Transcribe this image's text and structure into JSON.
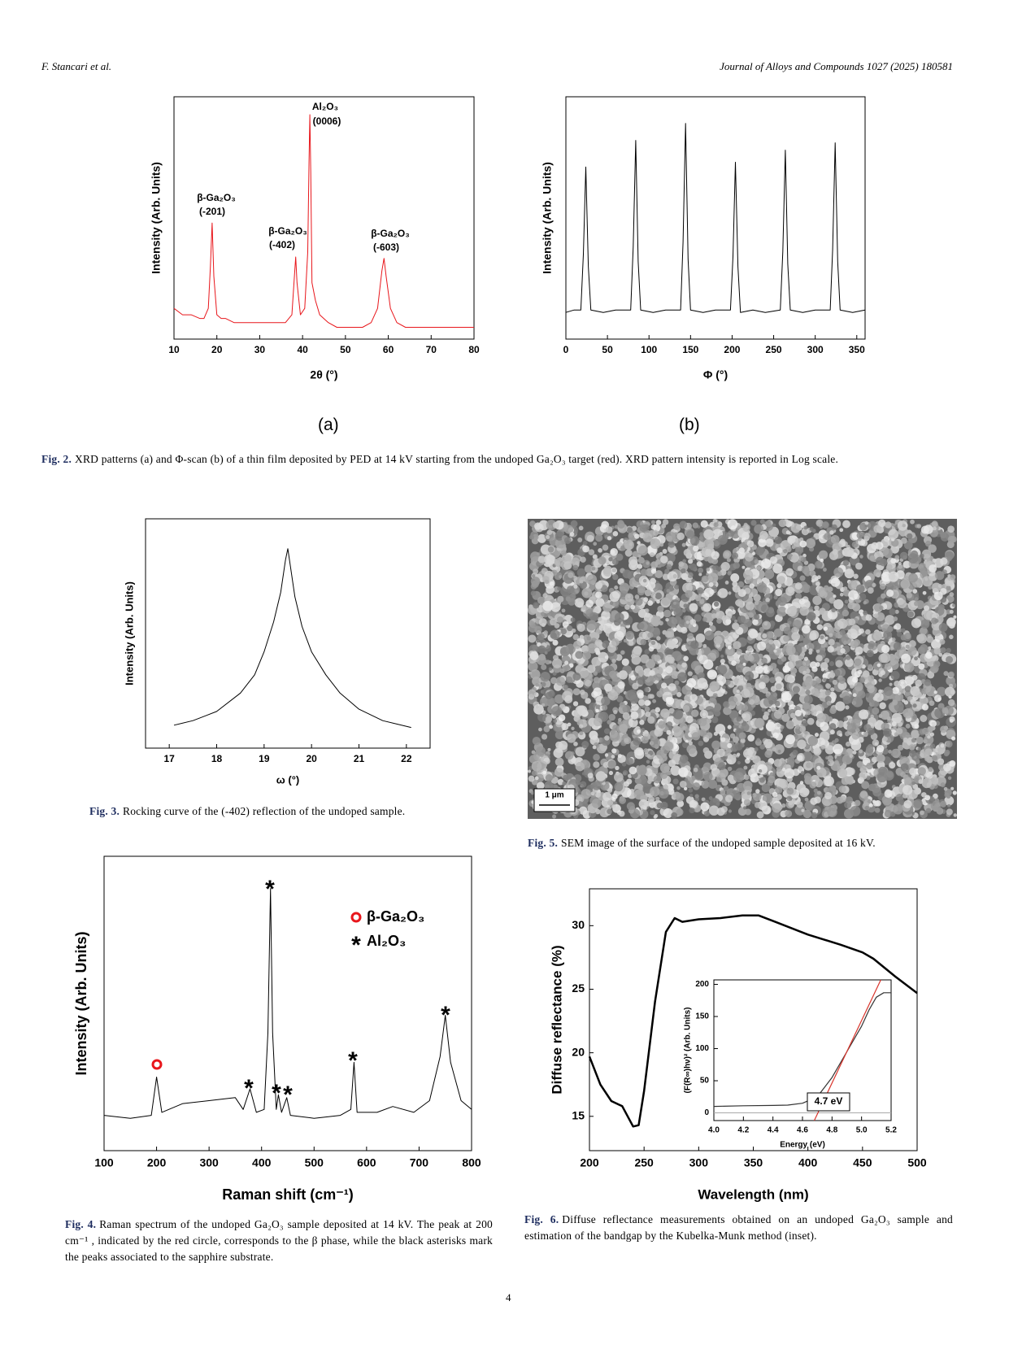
{
  "header": {
    "authors": "F. Stancari et al.",
    "journal": "Journal of Alloys and Compounds 1027 (2025) 180581"
  },
  "panel_labels": [
    "(a)",
    "(b)"
  ],
  "figures": [
    {
      "label": "Fig. 2.",
      "text": "XRD patterns (a) and Φ-scan (b) of a thin film deposited by PED at 14 kV starting from the undoped Ga₂O₃ target (red). XRD pattern intensity is reported in Log scale."
    },
    {
      "label": "Fig. 3.",
      "text": "Rocking curve of the (-402) reflection of the undoped sample."
    },
    {
      "label": "Fig. 5.",
      "text": "SEM image of the surface of the undoped sample deposited at 16 kV."
    },
    {
      "label": "Fig. 4.",
      "text": "Raman spectrum of the undoped Ga₂O₃ sample deposited at 14 kV. The peak at 200 cm⁻¹ , indicated by the red circle, corresponds to the β phase, while the black asterisks mark the peaks associated to the sapphire substrate."
    },
    {
      "label": "Fig. 6.",
      "text": "Diffuse reflectance measurements obtained on an undoped Ga₂O₃ sample and estimation of the bandgap by the Kubelka-Munk method (inset)."
    }
  ],
  "sem_scale_bar": "1 μm",
  "page_number": "4",
  "chart_data": [
    {
      "type": "line",
      "xlabel": "2θ (°)",
      "ylabel": "Intensity (Arb. Units)",
      "log_y": true,
      "xlim": [
        10,
        80
      ],
      "xticks": [
        10,
        20,
        30,
        40,
        50,
        60,
        70,
        80
      ],
      "ylim": [
        5,
        5000
      ],
      "x": [
        10,
        12,
        14,
        16,
        17,
        18,
        18.5,
        18.9,
        19.3,
        20,
        21,
        22,
        24,
        26,
        28,
        30,
        32,
        34,
        36,
        37.5,
        38.1,
        38.4,
        38.7,
        39.5,
        40.5,
        41.2,
        41.5,
        41.7,
        41.9,
        42.2,
        43,
        44,
        46,
        48,
        50,
        52,
        54,
        56,
        57.5,
        58.5,
        59,
        59.5,
        60.5,
        62,
        64,
        66,
        68,
        70,
        72,
        74,
        76,
        78,
        80
      ],
      "series": [
        {
          "color": "#e8161b",
          "values": [
            12,
            10,
            10,
            9,
            9,
            12,
            40,
            137,
            30,
            10,
            9,
            9,
            8,
            8,
            8,
            8,
            8,
            8,
            8,
            10,
            30,
            52,
            25,
            10,
            12,
            60,
            800,
            3000,
            600,
            25,
            15,
            10,
            8,
            7,
            7,
            7,
            7,
            8,
            12,
            35,
            50,
            30,
            12,
            8,
            7,
            7,
            7,
            7,
            7,
            7,
            7,
            7,
            7
          ]
        }
      ],
      "annotations": [
        "Al₂O₃",
        "(0006)",
        "β-Ga₂O₃",
        "(-201)",
        "β-Ga₂O₃",
        "(-402)",
        "β-Ga₂O₃",
        "(-603)"
      ]
    },
    {
      "type": "line",
      "xlabel": "Φ (°)",
      "ylabel": "Intensity (Arb. Units)",
      "xlim": [
        0,
        360
      ],
      "xticks": [
        0,
        50,
        100,
        150,
        200,
        250,
        300,
        350
      ],
      "ylim": [
        0,
        100
      ],
      "x": [
        0,
        10,
        18,
        21,
        24,
        27,
        30,
        45,
        60,
        78,
        81,
        84,
        87,
        90,
        105,
        120,
        138,
        141,
        144,
        147,
        150,
        165,
        180,
        198,
        201,
        204,
        207,
        210,
        225,
        240,
        258,
        261,
        264,
        267,
        270,
        285,
        300,
        318,
        321,
        324,
        327,
        330,
        345,
        360
      ],
      "series": [
        {
          "color": "#000000",
          "values": [
            11,
            12,
            12,
            35,
            71,
            30,
            12,
            11,
            12,
            12,
            38,
            82,
            32,
            12,
            11,
            12,
            12,
            40,
            89,
            33,
            12,
            11,
            12,
            12,
            34,
            73,
            30,
            11,
            12,
            11,
            12,
            36,
            78,
            31,
            12,
            11,
            12,
            12,
            37,
            81,
            32,
            12,
            11,
            12
          ]
        }
      ]
    },
    {
      "type": "line",
      "xlabel": "ω (°)",
      "ylabel": "Intensity (Arb. Units)",
      "xlim": [
        16.5,
        22.5
      ],
      "xticks": [
        17,
        18,
        19,
        20,
        21,
        22
      ],
      "ylim": [
        0,
        100
      ],
      "x": [
        17.1,
        17.5,
        18,
        18.5,
        18.8,
        19,
        19.2,
        19.35,
        19.45,
        19.5,
        19.55,
        19.65,
        19.8,
        20,
        20.3,
        20.6,
        21,
        21.5,
        22.1
      ],
      "series": [
        {
          "color": "#000000",
          "values": [
            10,
            12,
            16,
            24,
            32,
            42,
            55,
            68,
            82,
            87,
            80,
            66,
            53,
            42,
            32,
            24,
            17,
            12,
            9
          ]
        }
      ]
    },
    {
      "type": "line",
      "xlabel": "Raman shift (cm⁻¹)",
      "ylabel": "Intensity (Arb. Units)",
      "xlim": [
        100,
        800
      ],
      "xticks": [
        100,
        200,
        300,
        400,
        500,
        600,
        700,
        800
      ],
      "ylim": [
        0,
        100
      ],
      "x": [
        100,
        150,
        190,
        200,
        210,
        250,
        300,
        350,
        365,
        378,
        390,
        405,
        412,
        417,
        421,
        428,
        432,
        438,
        448,
        455,
        500,
        550,
        570,
        576,
        582,
        620,
        650,
        690,
        720,
        740,
        750,
        760,
        780,
        800
      ],
      "series": [
        {
          "color": "#000000",
          "values": [
            12,
            11,
            12,
            25,
            13,
            16,
            17,
            18,
            14,
            21,
            13,
            14,
            40,
            89,
            40,
            14,
            19,
            13,
            18,
            12,
            11,
            12,
            14,
            30,
            13,
            13,
            15,
            13,
            17,
            32,
            46,
            30,
            17,
            14
          ]
        }
      ],
      "legend": [
        "β-Ga₂O₃",
        "Al₂O₃"
      ],
      "annotations": [
        "*",
        "*",
        "*",
        "*",
        "*",
        "*"
      ]
    },
    {
      "type": "line",
      "xlabel": "Wavelength (nm)",
      "ylabel": "Diffuse reflectance (%)",
      "xlim": [
        200,
        500
      ],
      "xticks": [
        200,
        250,
        300,
        350,
        400,
        450,
        500
      ],
      "ylim": [
        12.3,
        32.9
      ],
      "yticks": [
        15,
        20,
        25,
        30
      ],
      "x": [
        200,
        210,
        220,
        230,
        240,
        245,
        250,
        260,
        270,
        278,
        285,
        300,
        320,
        340,
        355,
        370,
        400,
        430,
        450,
        460,
        480,
        500
      ],
      "series": [
        {
          "color": "#000000",
          "values": [
            19.7,
            17.5,
            16.2,
            15.8,
            14.2,
            14.3,
            17,
            24,
            29.5,
            30.6,
            30.3,
            30.5,
            30.6,
            30.8,
            30.8,
            30.3,
            29.3,
            28.5,
            27.9,
            27.4,
            26,
            24.7
          ]
        }
      ]
    },
    {
      "type": "line",
      "xlabel": "Energy (eV)",
      "ylabel": "(F(R∞)hν)² (Arb. Units)",
      "xlim": [
        4,
        5.2
      ],
      "xticks": [
        {
          "value": 4,
          "label": "4.0"
        },
        4.2,
        4.4,
        4.6,
        4.8,
        {
          "value": 5,
          "label": "5.0"
        },
        5.2
      ],
      "ylim": [
        -12,
        207
      ],
      "yticks": [
        0,
        50,
        100,
        150,
        200
      ],
      "series": [
        {
          "color": "#333333",
          "x": [
            4,
            4.2,
            4.4,
            4.5,
            4.6,
            4.7,
            4.8,
            4.9,
            5,
            5.05,
            5.1,
            5.15,
            5.2
          ],
          "values": [
            10,
            11,
            11.5,
            12,
            15,
            25,
            55,
            95,
            135,
            160,
            180,
            187,
            187
          ]
        },
        {
          "color": "#d9342b",
          "x": [
            4.68,
            5.13
          ],
          "values": [
            -12,
            207
          ]
        }
      ],
      "annotations": [
        "4.7 eV"
      ]
    }
  ]
}
